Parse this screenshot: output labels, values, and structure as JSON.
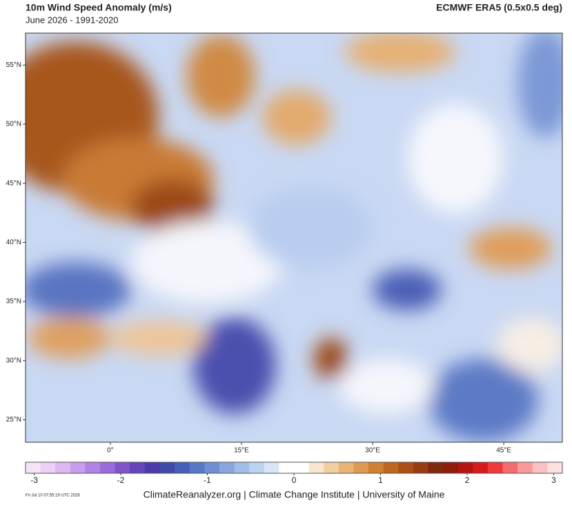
{
  "header": {
    "title": "10m Wind Speed Anomaly (m/s)",
    "subtitle": "June 2026 - 1991-2020",
    "source": "ECMWF ERA5 (0.5x0.5 deg)"
  },
  "map": {
    "xlim": [
      -9.7,
      51.7
    ],
    "ylim": [
      23.1,
      57.7
    ],
    "xticks": [
      {
        "value": 0,
        "label": "0°"
      },
      {
        "value": 15,
        "label": "15°E"
      },
      {
        "value": 30,
        "label": "30°E"
      },
      {
        "value": 45,
        "label": "45°E"
      }
    ],
    "yticks": [
      {
        "value": 55,
        "label": "55°N"
      },
      {
        "value": 50,
        "label": "50°N"
      },
      {
        "value": 45,
        "label": "45°N"
      },
      {
        "value": 40,
        "label": "40°N"
      },
      {
        "value": 35,
        "label": "35°N"
      },
      {
        "value": 30,
        "label": "30°N"
      },
      {
        "value": 25,
        "label": "25°N"
      }
    ]
  },
  "colorbar": {
    "lim": [
      -3.1,
      3.1
    ],
    "ticks": [
      -3,
      -2,
      -1,
      0,
      1,
      2,
      3
    ],
    "colors": [
      "#f6e3f8",
      "#ecd0f5",
      "#ddb8f1",
      "#c89ded",
      "#b183e4",
      "#9a6bd9",
      "#7f55c9",
      "#6447b9",
      "#4b3ba8",
      "#3f4aa8",
      "#4560b8",
      "#5878c6",
      "#6e90d2",
      "#87a7de",
      "#a0bee8",
      "#bbd4f1",
      "#d7e6f7",
      "#ffffff",
      "#ffffff",
      "#f8e6cf",
      "#f1cfa1",
      "#e8b577",
      "#df9a52",
      "#d17f33",
      "#c1661f",
      "#ad5015",
      "#973c10",
      "#80290c",
      "#8e1b0e",
      "#b51412",
      "#d81c1c",
      "#ee3a3a",
      "#f56c6c",
      "#f99a9a",
      "#fbc2c2",
      "#fde0e0"
    ]
  },
  "footer": {
    "credit": "ClimateReanalyzer.org | Climate Change Institute | University of Maine",
    "timestamp": "Fri Jul 10 07:55:19 UTC 2026"
  }
}
